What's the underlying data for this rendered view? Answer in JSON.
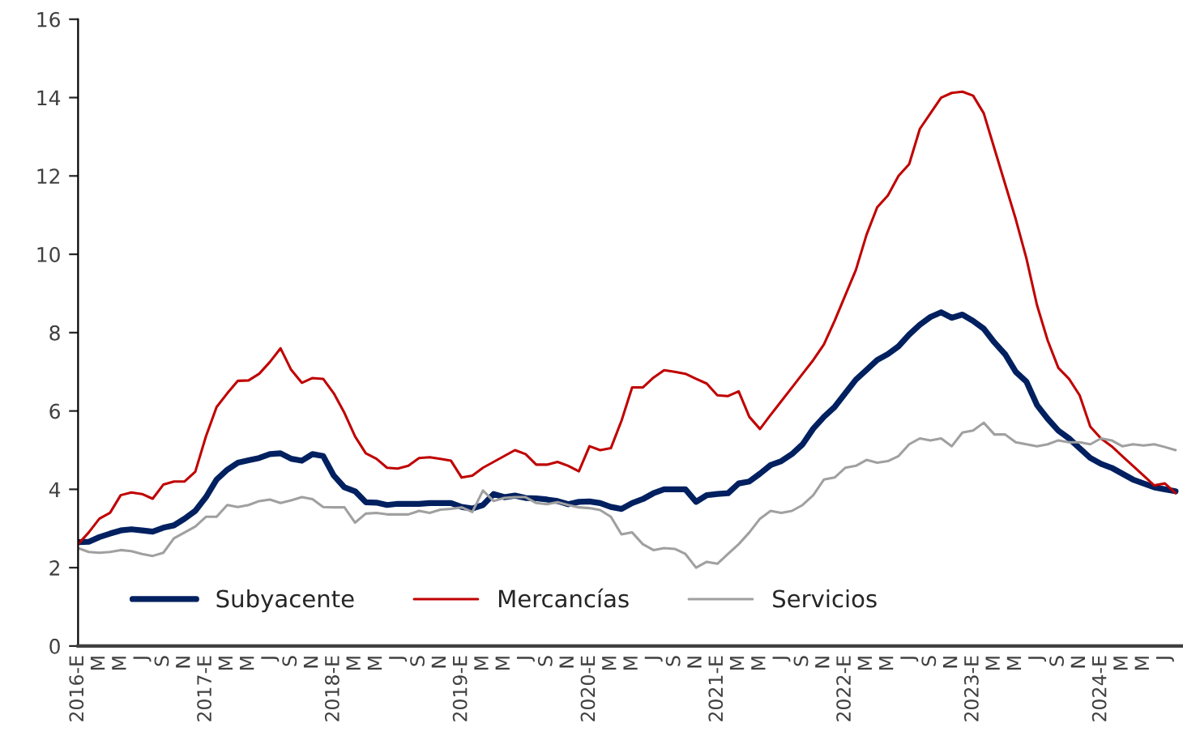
{
  "chart_data": {
    "type": "line",
    "categories": [
      "2016-E",
      null,
      "M",
      null,
      "M",
      null,
      "J",
      null,
      "S",
      null,
      "N",
      null,
      "2017-E",
      null,
      "M",
      null,
      "M",
      null,
      "J",
      null,
      "S",
      null,
      "N",
      null,
      "2018-E",
      null,
      "M",
      null,
      "M",
      null,
      "J",
      null,
      "S",
      null,
      "N",
      null,
      "2019-E",
      null,
      "M",
      null,
      "M",
      null,
      "J",
      null,
      "S",
      null,
      "N",
      null,
      "2020-E",
      null,
      "M",
      null,
      "M",
      null,
      "J",
      null,
      "S",
      null,
      "N",
      null,
      "2021-E",
      null,
      "M",
      null,
      "M",
      null,
      "J",
      null,
      "S",
      null,
      "N",
      null,
      "2022-E",
      null,
      "M",
      null,
      "M",
      null,
      "J",
      null,
      "S",
      null,
      "N",
      null,
      "2023-E",
      null,
      "M",
      null,
      "M",
      null,
      "J",
      null,
      "S",
      null,
      "N",
      null,
      "2024-E",
      null,
      "M",
      null,
      "M",
      null,
      "J",
      null
    ],
    "series": [
      {
        "name": "Subyacente",
        "color": "#002060",
        "values": [
          2.65,
          2.66,
          2.78,
          2.87,
          2.95,
          2.98,
          2.95,
          2.92,
          3.02,
          3.08,
          3.25,
          3.45,
          3.8,
          4.25,
          4.5,
          4.68,
          4.74,
          4.8,
          4.9,
          4.92,
          4.78,
          4.73,
          4.9,
          4.85,
          4.35,
          4.05,
          3.95,
          3.67,
          3.66,
          3.6,
          3.63,
          3.63,
          3.63,
          3.65,
          3.65,
          3.65,
          3.55,
          3.51,
          3.6,
          3.88,
          3.8,
          3.84,
          3.78,
          3.77,
          3.74,
          3.7,
          3.62,
          3.68,
          3.69,
          3.65,
          3.55,
          3.5,
          3.65,
          3.75,
          3.9,
          4.0,
          4.0,
          4.0,
          3.68,
          3.85,
          3.88,
          3.9,
          4.15,
          4.2,
          4.4,
          4.62,
          4.72,
          4.9,
          5.15,
          5.55,
          5.85,
          6.1,
          6.45,
          6.8,
          7.05,
          7.3,
          7.45,
          7.65,
          7.95,
          8.2,
          8.4,
          8.52,
          8.38,
          8.46,
          8.3,
          8.1,
          7.75,
          7.45,
          7.0,
          6.75,
          6.15,
          5.8,
          5.5,
          5.3,
          5.05,
          4.8,
          4.65,
          4.55,
          4.4,
          4.25,
          4.15,
          4.05,
          4.0,
          3.95
        ]
      },
      {
        "name": "Mercancías",
        "color": "#c00000",
        "values": [
          2.6,
          2.9,
          3.25,
          3.4,
          3.85,
          3.92,
          3.88,
          3.76,
          4.12,
          4.2,
          4.2,
          4.45,
          5.35,
          6.1,
          6.45,
          6.77,
          6.78,
          6.95,
          7.25,
          7.6,
          7.05,
          6.72,
          6.84,
          6.82,
          6.45,
          5.95,
          5.35,
          4.92,
          4.78,
          4.55,
          4.53,
          4.6,
          4.8,
          4.82,
          4.78,
          4.73,
          4.3,
          4.35,
          4.55,
          4.7,
          4.85,
          5.0,
          4.9,
          4.63,
          4.63,
          4.7,
          4.6,
          4.46,
          5.1,
          5.0,
          5.05,
          5.75,
          6.6,
          6.6,
          6.85,
          7.04,
          7.0,
          6.95,
          6.82,
          6.7,
          6.4,
          6.38,
          6.5,
          5.85,
          5.54,
          5.9,
          6.25,
          6.6,
          6.95,
          7.3,
          7.7,
          8.3,
          8.95,
          9.6,
          10.5,
          11.2,
          11.5,
          12.0,
          12.3,
          13.2,
          13.6,
          14.0,
          14.12,
          14.15,
          14.05,
          13.6,
          12.7,
          11.8,
          10.9,
          9.9,
          8.7,
          7.8,
          7.1,
          6.82,
          6.4,
          5.6,
          5.3,
          5.1,
          4.85,
          4.6,
          4.35,
          4.1,
          4.15,
          3.9
        ]
      },
      {
        "name": "Servicios",
        "color": "#a0a0a0",
        "values": [
          2.5,
          2.4,
          2.38,
          2.4,
          2.45,
          2.42,
          2.35,
          2.3,
          2.38,
          2.75,
          2.9,
          3.05,
          3.3,
          3.3,
          3.6,
          3.55,
          3.6,
          3.7,
          3.74,
          3.65,
          3.72,
          3.8,
          3.75,
          3.55,
          3.54,
          3.54,
          3.15,
          3.38,
          3.4,
          3.36,
          3.36,
          3.36,
          3.45,
          3.4,
          3.48,
          3.5,
          3.54,
          3.42,
          3.97,
          3.7,
          3.78,
          3.8,
          3.8,
          3.65,
          3.62,
          3.67,
          3.6,
          3.54,
          3.52,
          3.47,
          3.3,
          2.85,
          2.9,
          2.6,
          2.45,
          2.5,
          2.48,
          2.35,
          2.0,
          2.15,
          2.1,
          2.35,
          2.6,
          2.9,
          3.25,
          3.45,
          3.4,
          3.45,
          3.6,
          3.85,
          4.25,
          4.3,
          4.55,
          4.6,
          4.75,
          4.68,
          4.72,
          4.85,
          5.15,
          5.3,
          5.25,
          5.3,
          5.1,
          5.45,
          5.5,
          5.7,
          5.4,
          5.4,
          5.2,
          5.15,
          5.1,
          5.15,
          5.25,
          5.2,
          5.2,
          5.15,
          5.3,
          5.25,
          5.1,
          5.15,
          5.12,
          5.15,
          5.08,
          5.0
        ]
      }
    ],
    "ylim": [
      0,
      16
    ],
    "yticks": [
      0,
      2,
      4,
      6,
      8,
      10,
      12,
      14,
      16
    ],
    "grid": false,
    "legend": "bottom left",
    "line_style": "solid",
    "marker": "none"
  }
}
